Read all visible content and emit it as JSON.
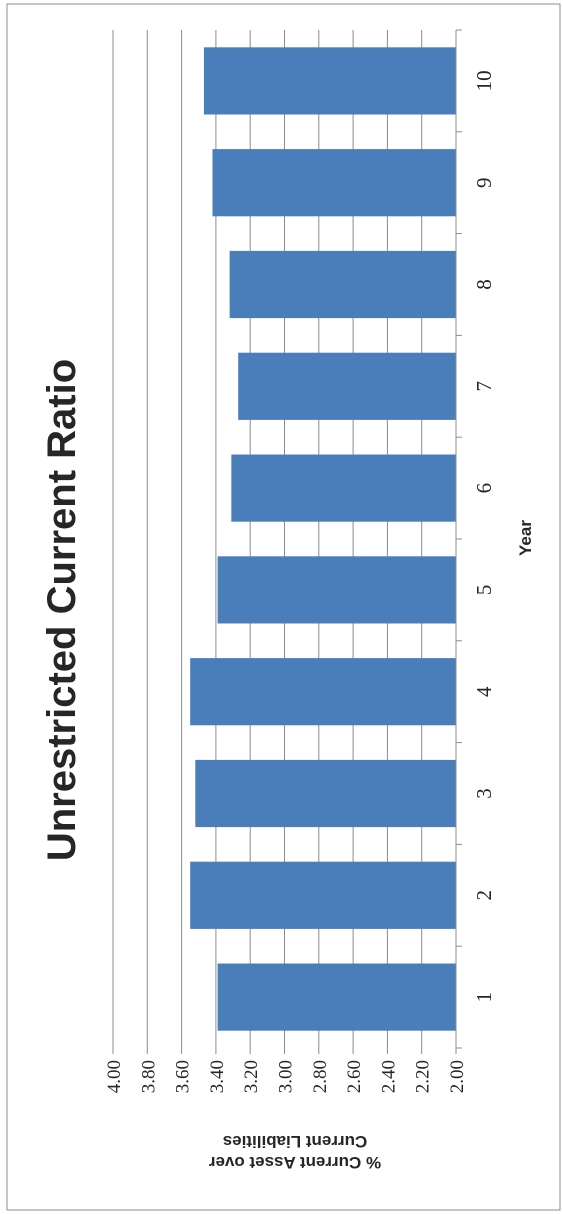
{
  "chart_data": {
    "type": "bar",
    "orientation": "rotated-90",
    "title": "Unrestricted Current Ratio",
    "xlabel": "Year",
    "ylabel_lines": [
      "% Current Asset over",
      "Current Liabilities"
    ],
    "categories": [
      "1",
      "2",
      "3",
      "4",
      "5",
      "6",
      "7",
      "8",
      "9",
      "10"
    ],
    "values": [
      3.39,
      3.55,
      3.52,
      3.55,
      3.39,
      3.31,
      3.27,
      3.32,
      3.42,
      3.47
    ],
    "ylim": [
      2.0,
      4.0
    ],
    "yticks": [
      "2.00",
      "2.20",
      "2.40",
      "2.60",
      "2.80",
      "3.00",
      "3.20",
      "3.40",
      "3.60",
      "3.80",
      "4.00"
    ],
    "grid": true,
    "colors": {
      "bar": "#4a7ebb",
      "grid": "#8c8c8c",
      "axis": "#8c8c8c",
      "border": "#8c8c8c",
      "text": "#262626"
    }
  }
}
